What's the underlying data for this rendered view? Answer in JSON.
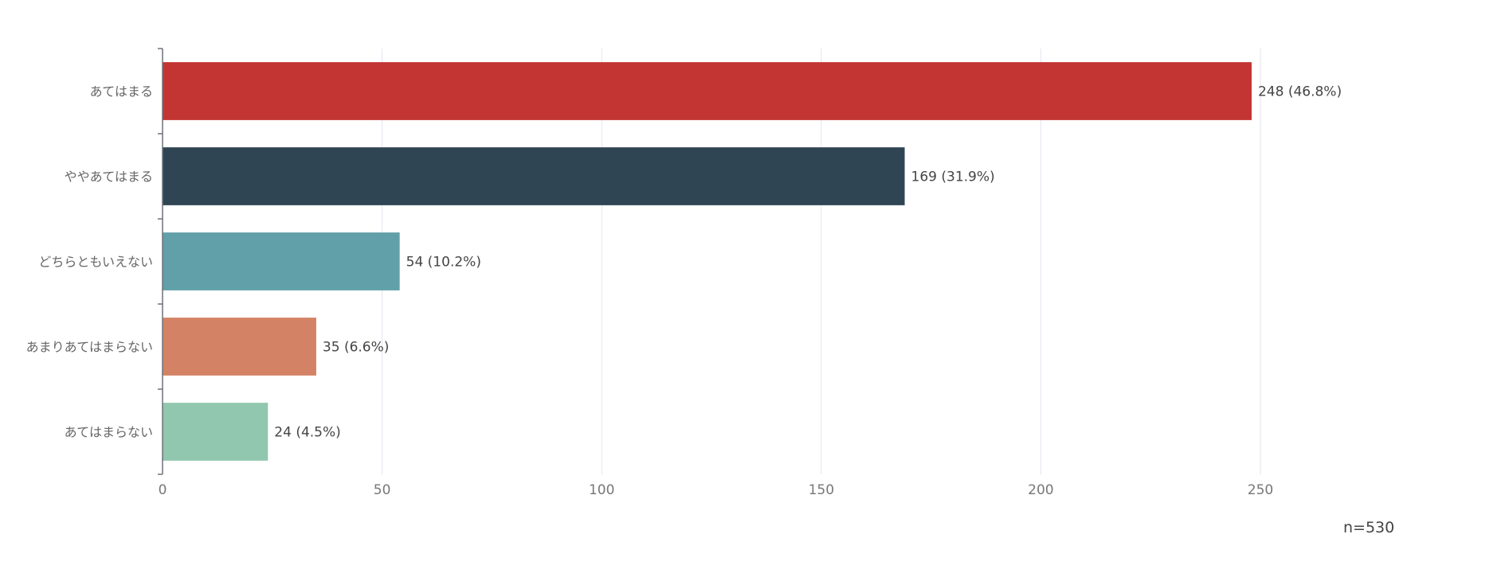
{
  "chart_data": {
    "type": "bar",
    "orientation": "horizontal",
    "categories": [
      "あてはまる",
      "ややあてはまる",
      "どちらともいえない",
      "あまりあてはまらない",
      "あてはまらない"
    ],
    "values": [
      248,
      169,
      54,
      35,
      24
    ],
    "value_labels": [
      "248 (46.8%)",
      "169 (31.9%)",
      "54 (10.2%)",
      "35 (6.6%)",
      "24 (4.5%)"
    ],
    "colors": [
      "#c33532",
      "#2f4554",
      "#61a0a8",
      "#d48265",
      "#91c7ae"
    ],
    "xticks": [
      0,
      50,
      100,
      150,
      200,
      250
    ],
    "xlim": [
      0,
      250
    ],
    "grid": true,
    "title": "",
    "xlabel": "",
    "ylabel": ""
  },
  "sample_size_label": "n=530"
}
